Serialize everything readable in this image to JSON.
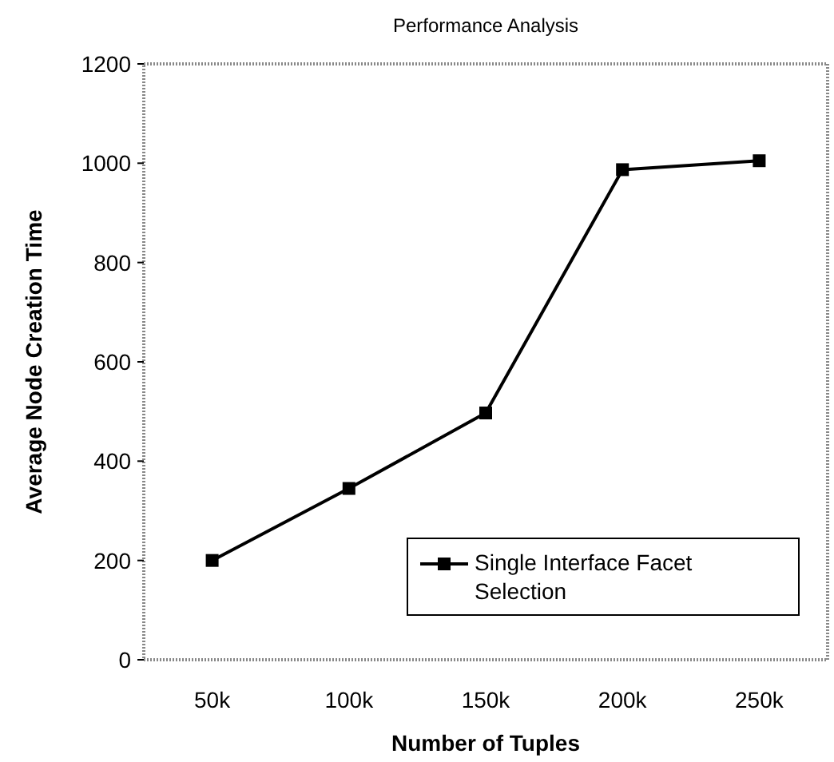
{
  "chart_data": {
    "type": "line",
    "title": "Performance Analysis",
    "xlabel": "Number of Tuples",
    "ylabel": "Average Node Creation Time",
    "categories": [
      "50k",
      "100k",
      "150k",
      "200k",
      "250k"
    ],
    "series": [
      {
        "name": "Single Interface Facet Selection",
        "color": "#000000",
        "values": [
          200,
          345,
          497,
          987,
          1005
        ]
      }
    ],
    "ylim": [
      0,
      1200
    ],
    "yticks": [
      0,
      200,
      400,
      600,
      800,
      1000,
      1200
    ],
    "grid": false,
    "legend": "bottom right",
    "marker": "square",
    "line_style": "solid"
  }
}
